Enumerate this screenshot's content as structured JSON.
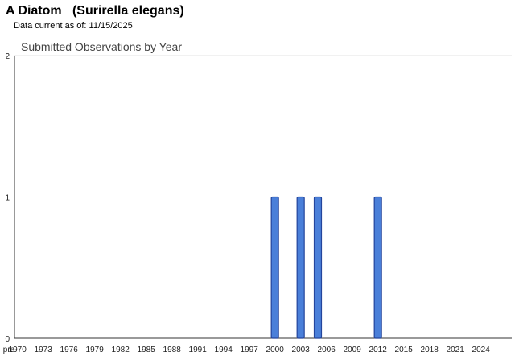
{
  "header": {
    "title": "A Diatom   (Surirella elegans)",
    "data_current_label": "Data current as of: 11/15/2025"
  },
  "colors": {
    "bar_fill": "#4a7fd9",
    "bar_stroke": "#24459c",
    "grid": "#e3e3e3",
    "axis": "#333333"
  },
  "chart_data": {
    "type": "bar",
    "title": "Submitted Observations by Year",
    "xlabel": "",
    "ylabel": "",
    "categories": [
      "pre",
      "1970",
      "1971",
      "1972",
      "1973",
      "1974",
      "1975",
      "1976",
      "1977",
      "1978",
      "1979",
      "1980",
      "1981",
      "1982",
      "1983",
      "1984",
      "1985",
      "1986",
      "1987",
      "1988",
      "1989",
      "1990",
      "1991",
      "1992",
      "1993",
      "1994",
      "1995",
      "1996",
      "1997",
      "1998",
      "1999",
      "2000",
      "2001",
      "2002",
      "2003",
      "2004",
      "2005",
      "2006",
      "2007",
      "2008",
      "2009",
      "2010",
      "2011",
      "2012",
      "2013",
      "2014",
      "2015",
      "2016",
      "2017",
      "2018",
      "2019",
      "2020",
      "2021",
      "2022",
      "2023",
      "2024",
      "2025"
    ],
    "x_tick_labels": [
      "pre",
      "1970",
      "1973",
      "1976",
      "1979",
      "1982",
      "1985",
      "1988",
      "1991",
      "1994",
      "1997",
      "2000",
      "2003",
      "2006",
      "2009",
      "2012",
      "2015",
      "2018",
      "2021",
      "2024"
    ],
    "values": [
      0,
      0,
      0,
      0,
      0,
      0,
      0,
      0,
      0,
      0,
      0,
      0,
      0,
      0,
      0,
      0,
      0,
      0,
      0,
      0,
      0,
      0,
      0,
      0,
      0,
      0,
      0,
      0,
      0,
      0,
      0,
      1,
      0,
      0,
      1,
      0,
      1,
      0,
      0,
      0,
      0,
      0,
      0,
      1,
      0,
      0,
      0,
      0,
      0,
      0,
      0,
      0,
      0,
      0,
      0,
      0,
      0
    ],
    "ylim": [
      0,
      2
    ],
    "yticks": [
      0,
      1,
      2
    ],
    "grid": true,
    "legend": "none"
  }
}
